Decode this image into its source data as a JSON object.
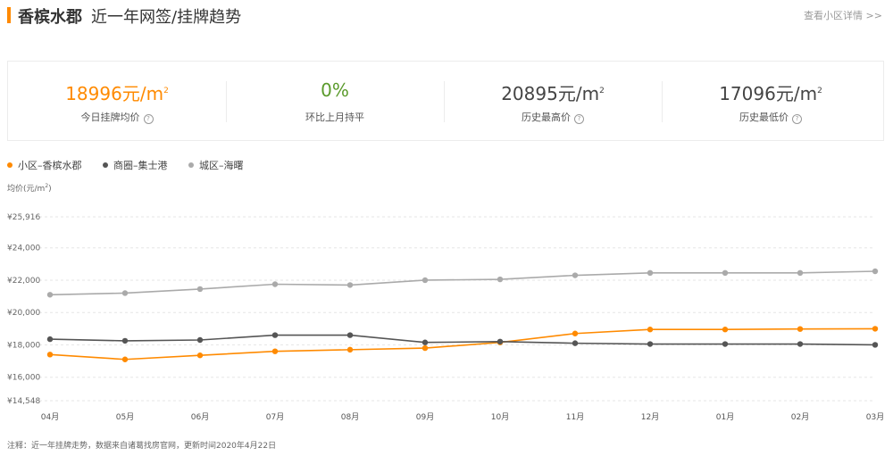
{
  "header": {
    "community": "香槟水郡",
    "subtitle": "近一年网签/挂牌趋势",
    "detail_link": "查看小区详情 >>"
  },
  "stats": [
    {
      "value": "18996",
      "unit": "元/m",
      "sup": "2",
      "label": "今日挂牌均价",
      "help": "?",
      "color": "#ff8a00"
    },
    {
      "value": "0%",
      "unit": "",
      "sup": "",
      "label": "环比上月持平",
      "help": "",
      "color": "#5a9a2b"
    },
    {
      "value": "20895",
      "unit": "元/m",
      "sup": "2",
      "label": "历史最高价",
      "help": "?",
      "color": "#444444"
    },
    {
      "value": "17096",
      "unit": "元/m",
      "sup": "2",
      "label": "历史最低价",
      "help": "?",
      "color": "#444444"
    }
  ],
  "legend": [
    {
      "label": "小区–香槟水郡",
      "color": "#ff8a00"
    },
    {
      "label": "商圈–集士港",
      "color": "#555555"
    },
    {
      "label": "城区–海曙",
      "color": "#aaaaaa"
    }
  ],
  "yaxis_title": {
    "text": "均价(元/m",
    "sup": "2",
    "suffix": ")"
  },
  "note": "注释：近一年挂牌走势，数据来自诸葛找房官网，更新时间2020年4月22日",
  "chart_data": {
    "type": "line",
    "categories": [
      "04月",
      "05月",
      "06月",
      "07月",
      "08月",
      "09月",
      "10月",
      "11月",
      "12月",
      "01月",
      "02月",
      "03月"
    ],
    "ylabel": "均价(元/m²)",
    "ylim": [
      14548,
      25916
    ],
    "yticks": [
      14548,
      16000,
      18000,
      20000,
      22000,
      24000,
      25916
    ],
    "ytick_labels": [
      "¥14,548",
      "¥16,000",
      "¥18,000",
      "¥20,000",
      "¥22,000",
      "¥24,000",
      "¥25,916"
    ],
    "grid": true,
    "legend_position": "top-left",
    "series": [
      {
        "name": "小区–香槟水郡",
        "color": "#ff8a00",
        "values": [
          17400,
          17100,
          17350,
          17600,
          17700,
          17800,
          18150,
          18700,
          18950,
          18950,
          18980,
          18996
        ]
      },
      {
        "name": "商圈–集士港",
        "color": "#555555",
        "values": [
          18350,
          18250,
          18300,
          18600,
          18600,
          18150,
          18200,
          18100,
          18050,
          18050,
          18050,
          18000
        ]
      },
      {
        "name": "城区–海曙",
        "color": "#aaaaaa",
        "values": [
          21100,
          21200,
          21450,
          21750,
          21700,
          22000,
          22050,
          22300,
          22450,
          22450,
          22450,
          22550
        ]
      }
    ]
  }
}
